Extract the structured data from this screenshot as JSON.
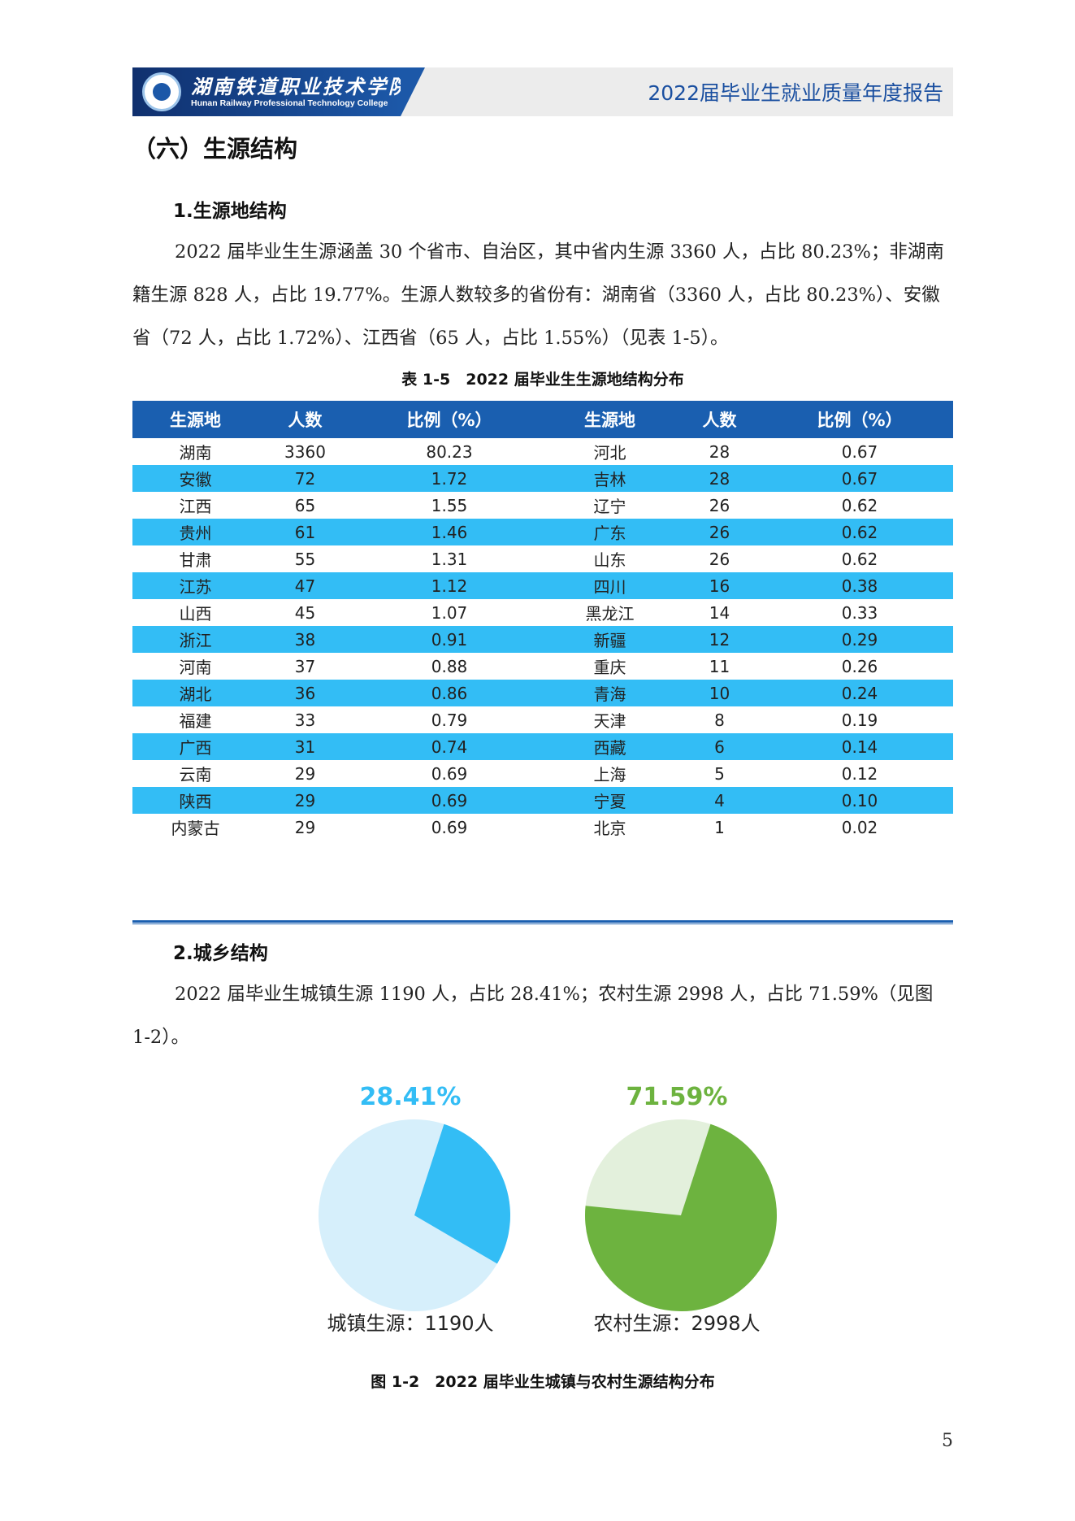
{
  "header": {
    "logo_cn": "湖南铁道职业技术学院",
    "logo_en": "Hunan Railway Professional Technology College",
    "report_title": "2022届毕业生就业质量年度报告"
  },
  "section": {
    "title": "（六）生源结构"
  },
  "sub1": {
    "title": "1.生源地结构",
    "paragraph": "2022 届毕业生生源涵盖 30 个省市、自治区，其中省内生源 3360 人，占比 80.23%；非湖南籍生源 828 人，占比 19.77%。生源人数较多的省份有：湖南省（3360 人，占比 80.23%）、安徽省（72 人，占比 1.72%）、江西省（65 人，占比 1.55%）（见表 1-5）。"
  },
  "table": {
    "caption": "表 1-5　2022 届毕业生生源地结构分布",
    "headers": [
      "生源地",
      "人数",
      "比例（%）",
      "生源地",
      "人数",
      "比例（%）"
    ],
    "rows": [
      [
        "湖南",
        "3360",
        "80.23",
        "河北",
        "28",
        "0.67"
      ],
      [
        "安徽",
        "72",
        "1.72",
        "吉林",
        "28",
        "0.67"
      ],
      [
        "江西",
        "65",
        "1.55",
        "辽宁",
        "26",
        "0.62"
      ],
      [
        "贵州",
        "61",
        "1.46",
        "广东",
        "26",
        "0.62"
      ],
      [
        "甘肃",
        "55",
        "1.31",
        "山东",
        "26",
        "0.62"
      ],
      [
        "江苏",
        "47",
        "1.12",
        "四川",
        "16",
        "0.38"
      ],
      [
        "山西",
        "45",
        "1.07",
        "黑龙江",
        "14",
        "0.33"
      ],
      [
        "浙江",
        "38",
        "0.91",
        "新疆",
        "12",
        "0.29"
      ],
      [
        "河南",
        "37",
        "0.88",
        "重庆",
        "11",
        "0.26"
      ],
      [
        "湖北",
        "36",
        "0.86",
        "青海",
        "10",
        "0.24"
      ],
      [
        "福建",
        "33",
        "0.79",
        "天津",
        "8",
        "0.19"
      ],
      [
        "广西",
        "31",
        "0.74",
        "西藏",
        "6",
        "0.14"
      ],
      [
        "云南",
        "29",
        "0.69",
        "上海",
        "5",
        "0.12"
      ],
      [
        "陕西",
        "29",
        "0.69",
        "宁夏",
        "4",
        "0.10"
      ],
      [
        "内蒙古",
        "29",
        "0.69",
        "北京",
        "1",
        "0.02"
      ]
    ]
  },
  "sub2": {
    "title": "2.城乡结构",
    "paragraph": "2022 届毕业生城镇生源 1190 人，占比 28.41%；农村生源 2998 人，占比 71.59%（见图 1-2）。"
  },
  "chart_data": [
    {
      "type": "pie",
      "values": [
        28.41,
        71.59
      ],
      "value_label": "28.41%",
      "label": "城镇生源：1190人",
      "colors": [
        "#33bdf5",
        "#d6effb"
      ]
    },
    {
      "type": "pie",
      "values": [
        71.59,
        28.41
      ],
      "value_label": "71.59%",
      "label": "农村生源：2998人",
      "colors": [
        "#6db33f",
        "#e3f0dc"
      ]
    }
  ],
  "figure": {
    "caption": "图 1-2　2022 届毕业生城镇与农村生源结构分布"
  },
  "page_number": "5",
  "colors": {
    "header_blue": "#1a5fb0",
    "row_highlight": "#33bdf5",
    "urban_blue": "#33bdf5",
    "rural_green": "#6db33f"
  }
}
